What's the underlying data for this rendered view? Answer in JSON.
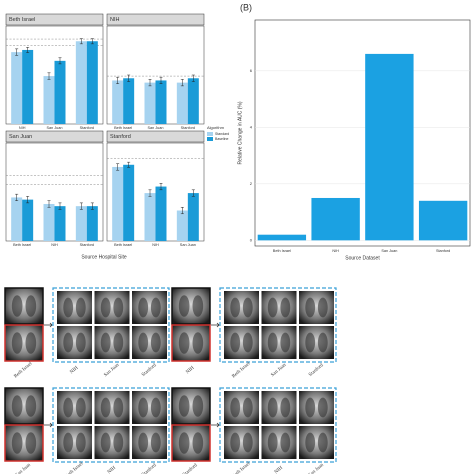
{
  "chart_data": [
    {
      "type": "grouped_bar",
      "x_label": "Source Hospital Site",
      "legend_title": "Algorithm",
      "series": [
        {
          "name": "Standard",
          "color": "#a6d3f0"
        },
        {
          "name": "Baseline",
          "color": "#1a9bd7"
        }
      ],
      "ylim": [
        0.5,
        0.95
      ],
      "facets": [
        {
          "title": "Beth Israel",
          "categories": [
            "NIH",
            "San Juan",
            "Stanford"
          ],
          "values": [
            [
              0.83,
              0.72,
              0.88
            ],
            [
              0.84,
              0.79,
              0.88
            ]
          ],
          "errors": [
            [
              0.015,
              0.015,
              0.012
            ],
            [
              0.012,
              0.014,
              0.012
            ]
          ],
          "reference_lines": [
            0.89,
            0.86
          ]
        },
        {
          "title": "NIH",
          "categories": [
            "Beth Israel",
            "San Juan",
            "Stanford"
          ],
          "values": [
            [
              0.7,
              0.69,
              0.69
            ],
            [
              0.71,
              0.7,
              0.71
            ]
          ],
          "errors": [
            [
              0.015,
              0.015,
              0.015
            ],
            [
              0.015,
              0.015,
              0.015
            ]
          ],
          "reference_lines": [
            0.72
          ]
        },
        {
          "title": "San Juan",
          "categories": [
            "Beth Israel",
            "NIH",
            "Stanford"
          ],
          "values": [
            [
              0.7,
              0.67,
              0.66
            ],
            [
              0.69,
              0.66,
              0.66
            ]
          ],
          "errors": [
            [
              0.015,
              0.015,
              0.015
            ],
            [
              0.015,
              0.015,
              0.015
            ]
          ],
          "reference_lines": [
            0.8,
            0.76
          ]
        },
        {
          "title": "Stanford",
          "categories": [
            "Beth Israel",
            "NIH",
            "San Juan"
          ],
          "values": [
            [
              0.84,
              0.72,
              0.64
            ],
            [
              0.85,
              0.75,
              0.72
            ]
          ],
          "errors": [
            [
              0.015,
              0.015,
              0.015
            ],
            [
              0.012,
              0.015,
              0.015
            ]
          ],
          "reference_lines": [
            0.88
          ]
        }
      ]
    },
    {
      "type": "bar",
      "panel_label": "(B)",
      "x_label": "Source Dataset",
      "y_label": "Relative Change in AUC (%)",
      "categories": [
        "Beth Israel",
        "NIH",
        "San Juan",
        "Stanford"
      ],
      "values": [
        0.2,
        1.5,
        6.6,
        1.4
      ],
      "color": "#1ba1e2",
      "ylim": [
        -0.2,
        7.8
      ],
      "yticks": [
        0,
        2,
        4,
        6
      ],
      "grid": true
    }
  ],
  "image_grids": [
    {
      "source": "Beth Israel",
      "targets": [
        "NIH",
        "San Juan",
        "Stanford"
      ]
    },
    {
      "source": "NIH",
      "targets": [
        "Beth Israel",
        "San Juan",
        "Stanford"
      ]
    },
    {
      "source": "San Juan",
      "targets": [
        "Beth Israel",
        "NIH",
        "Stanford"
      ]
    },
    {
      "source": "Stanford",
      "targets": [
        "Beth Israel",
        "NIH",
        "San Juan"
      ]
    }
  ]
}
